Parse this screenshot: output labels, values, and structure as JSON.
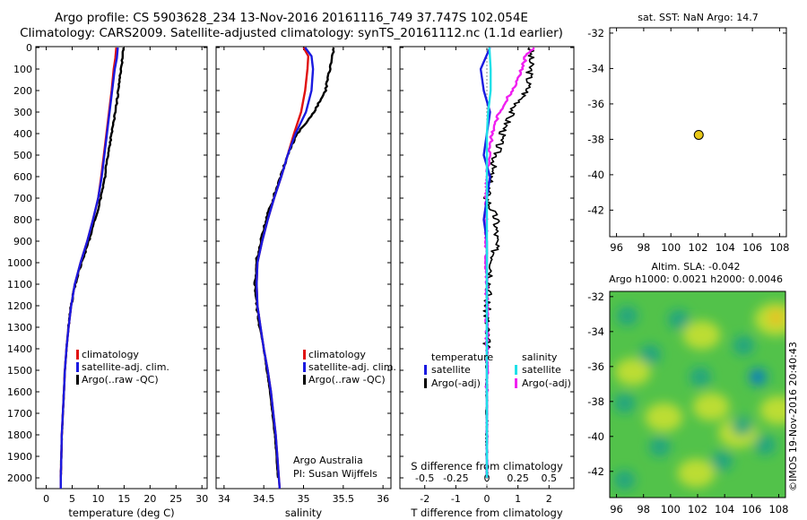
{
  "header": {
    "line1": "Argo profile: CS 5903628_234 13-Nov-2016 20161116_749 37.747S 102.054E",
    "line2": "Climatology: CARS2009. Satellite-adjusted climatology: synTS_20161112.nc (1.1d earlier)"
  },
  "credit": "©IMOS 19-Nov-2016 20:40:43",
  "colors": {
    "climatology": "#e01010",
    "satellite": "#1a1ae0",
    "argo": "#000000",
    "satellite_s": "#20e0e8",
    "argo_s": "#f020f0",
    "float_marker": "#e8c818"
  },
  "chart_data": [
    {
      "type": "line",
      "xlabel": "temperature (deg C)",
      "ylabel": "",
      "xlim": [
        -2,
        31
      ],
      "ylim": [
        2050,
        0
      ],
      "xticks": [
        0,
        5,
        10,
        15,
        20,
        25,
        30
      ],
      "yticks": [
        0,
        100,
        200,
        300,
        400,
        500,
        600,
        700,
        800,
        900,
        1000,
        1100,
        1200,
        1300,
        1400,
        1500,
        1600,
        1700,
        1800,
        1900,
        2000
      ],
      "legend": [
        "climatology",
        "satellite-adj. clim.",
        "Argo(..raw -QC)"
      ],
      "series": [
        {
          "name": "climatology",
          "points": [
            [
              13.5,
              0
            ],
            [
              13.3,
              50
            ],
            [
              13.0,
              100
            ],
            [
              12.6,
              200
            ],
            [
              12.1,
              300
            ],
            [
              11.6,
              400
            ],
            [
              11.1,
              500
            ],
            [
              10.6,
              600
            ],
            [
              10.0,
              700
            ],
            [
              9.0,
              800
            ],
            [
              7.9,
              900
            ],
            [
              6.6,
              1000
            ],
            [
              5.5,
              1100
            ],
            [
              4.8,
              1200
            ],
            [
              4.3,
              1300
            ],
            [
              3.9,
              1400
            ],
            [
              3.6,
              1500
            ],
            [
              3.4,
              1600
            ],
            [
              3.2,
              1700
            ],
            [
              3.0,
              1800
            ],
            [
              2.9,
              1900
            ],
            [
              2.8,
              2000
            ],
            [
              2.8,
              2050
            ]
          ]
        },
        {
          "name": "satellite-adj. clim.",
          "points": [
            [
              13.8,
              0
            ],
            [
              13.6,
              50
            ],
            [
              13.2,
              100
            ],
            [
              12.7,
              200
            ],
            [
              12.2,
              300
            ],
            [
              11.7,
              400
            ],
            [
              11.2,
              500
            ],
            [
              10.7,
              600
            ],
            [
              10.0,
              700
            ],
            [
              9.0,
              800
            ],
            [
              7.9,
              900
            ],
            [
              6.6,
              1000
            ],
            [
              5.5,
              1100
            ],
            [
              4.8,
              1200
            ],
            [
              4.3,
              1300
            ],
            [
              3.9,
              1400
            ],
            [
              3.6,
              1500
            ],
            [
              3.4,
              1600
            ],
            [
              3.2,
              1700
            ],
            [
              3.0,
              1800
            ],
            [
              2.9,
              1900
            ],
            [
              2.8,
              2000
            ],
            [
              2.8,
              2050
            ]
          ]
        },
        {
          "name": "Argo(..raw -QC)",
          "points": [
            [
              14.9,
              0
            ],
            [
              14.7,
              50
            ],
            [
              14.4,
              100
            ],
            [
              13.9,
              200
            ],
            [
              13.3,
              300
            ],
            [
              12.6,
              400
            ],
            [
              11.9,
              500
            ],
            [
              11.3,
              600
            ],
            [
              10.5,
              700
            ],
            [
              9.4,
              800
            ],
            [
              8.2,
              900
            ],
            [
              6.8,
              1000
            ],
            [
              5.6,
              1100
            ],
            [
              4.8,
              1200
            ],
            [
              4.3,
              1300
            ],
            [
              3.9,
              1400
            ],
            [
              3.6,
              1500
            ],
            [
              3.4,
              1600
            ],
            [
              3.2,
              1700
            ],
            [
              3.0,
              1800
            ],
            [
              2.9,
              1900
            ],
            [
              2.8,
              2000
            ]
          ]
        }
      ]
    },
    {
      "type": "line",
      "xlabel": "salinity",
      "xlim": [
        33.9,
        36.1
      ],
      "ylim": [
        2050,
        0
      ],
      "xticks": [
        34,
        34.5,
        35,
        35.5,
        36
      ],
      "legend": [
        "climatology",
        "satellite-adj. clim.",
        "Argo(..raw -QC)"
      ],
      "annotation": [
        "Argo Australia",
        "PI: Susan Wijffels"
      ],
      "series": [
        {
          "name": "climatology",
          "points": [
            [
              35.0,
              0
            ],
            [
              35.06,
              40
            ],
            [
              35.05,
              100
            ],
            [
              35.02,
              200
            ],
            [
              34.97,
              300
            ],
            [
              34.88,
              400
            ],
            [
              34.8,
              500
            ],
            [
              34.72,
              600
            ],
            [
              34.63,
              700
            ],
            [
              34.55,
              800
            ],
            [
              34.48,
              900
            ],
            [
              34.42,
              1000
            ],
            [
              34.41,
              1100
            ],
            [
              34.42,
              1200
            ],
            [
              34.46,
              1300
            ],
            [
              34.5,
              1400
            ],
            [
              34.55,
              1500
            ],
            [
              34.59,
              1600
            ],
            [
              34.62,
              1700
            ],
            [
              34.65,
              1800
            ],
            [
              34.67,
              1900
            ],
            [
              34.69,
              2000
            ],
            [
              34.7,
              2050
            ]
          ]
        },
        {
          "name": "satellite-adj. clim.",
          "points": [
            [
              35.02,
              0
            ],
            [
              35.1,
              40
            ],
            [
              35.12,
              100
            ],
            [
              35.1,
              200
            ],
            [
              35.03,
              300
            ],
            [
              34.9,
              400
            ],
            [
              34.8,
              500
            ],
            [
              34.72,
              600
            ],
            [
              34.63,
              700
            ],
            [
              34.55,
              800
            ],
            [
              34.48,
              900
            ],
            [
              34.42,
              1000
            ],
            [
              34.41,
              1100
            ],
            [
              34.42,
              1200
            ],
            [
              34.46,
              1300
            ],
            [
              34.5,
              1400
            ],
            [
              34.55,
              1500
            ],
            [
              34.59,
              1600
            ],
            [
              34.62,
              1700
            ],
            [
              34.65,
              1800
            ],
            [
              34.67,
              1900
            ],
            [
              34.69,
              2000
            ],
            [
              34.7,
              2050
            ]
          ]
        },
        {
          "name": "Argo(..raw -QC)",
          "points": [
            [
              35.38,
              0
            ],
            [
              35.36,
              40
            ],
            [
              35.33,
              100
            ],
            [
              35.28,
              200
            ],
            [
              35.13,
              300
            ],
            [
              34.92,
              400
            ],
            [
              34.8,
              500
            ],
            [
              34.71,
              600
            ],
            [
              34.62,
              700
            ],
            [
              34.53,
              800
            ],
            [
              34.46,
              900
            ],
            [
              34.4,
              1000
            ],
            [
              34.39,
              1100
            ],
            [
              34.41,
              1200
            ],
            [
              34.45,
              1300
            ],
            [
              34.5,
              1400
            ],
            [
              34.54,
              1500
            ],
            [
              34.58,
              1600
            ],
            [
              34.61,
              1700
            ],
            [
              34.64,
              1800
            ],
            [
              34.66,
              1900
            ],
            [
              34.68,
              2000
            ]
          ]
        }
      ]
    },
    {
      "type": "line",
      "xlabel": "T difference from climatology",
      "xlabel_top": "S difference from climatology",
      "xlim": [
        -2.8,
        2.8
      ],
      "ylim": [
        2050,
        0
      ],
      "xticks": [
        -2,
        -1,
        0,
        1,
        2
      ],
      "xticks_top": [
        "-0.5",
        "-0.25",
        "0",
        "0.25",
        "0.5"
      ],
      "legend_titles": [
        "temperature",
        "salinity"
      ],
      "legend": [
        "satellite",
        "Argo(-adj)",
        "satellite",
        "Argo(-adj)"
      ],
      "series": [
        {
          "name": "temperature satellite",
          "points": [
            [
              0.1,
              0
            ],
            [
              -0.2,
              100
            ],
            [
              -0.1,
              200
            ],
            [
              0.1,
              300
            ],
            [
              0.0,
              400
            ],
            [
              -0.1,
              500
            ],
            [
              0.1,
              600
            ],
            [
              0.0,
              700
            ],
            [
              -0.1,
              800
            ],
            [
              0.0,
              900
            ],
            [
              0.0,
              1000
            ],
            [
              0.0,
              1100
            ],
            [
              0.0,
              1200
            ],
            [
              0.0,
              1400
            ],
            [
              0.0,
              1600
            ],
            [
              0.0,
              1800
            ],
            [
              0.0,
              2000
            ]
          ]
        },
        {
          "name": "temperature Argo(-adj)",
          "points": [
            [
              1.4,
              0
            ],
            [
              1.4,
              100
            ],
            [
              1.3,
              200
            ],
            [
              0.8,
              300
            ],
            [
              0.5,
              400
            ],
            [
              0.3,
              500
            ],
            [
              0.1,
              600
            ],
            [
              0.0,
              700
            ],
            [
              0.3,
              800
            ],
            [
              0.3,
              900
            ],
            [
              0.2,
              1000
            ],
            [
              0.1,
              1100
            ],
            [
              0.0,
              1200
            ],
            [
              0.0,
              1400
            ],
            [
              0.0,
              1600
            ],
            [
              0.0,
              1800
            ],
            [
              0.0,
              2000
            ]
          ]
        },
        {
          "name": "salinity satellite",
          "points": [
            [
              0.02,
              0
            ],
            [
              0.03,
              100
            ],
            [
              0.03,
              200
            ],
            [
              0.01,
              300
            ],
            [
              0.0,
              400
            ],
            [
              0.0,
              500
            ],
            [
              0.0,
              700
            ],
            [
              0.0,
              1000
            ],
            [
              0.0,
              1500
            ],
            [
              0.0,
              2000
            ]
          ]
        },
        {
          "name": "salinity Argo(-adj)",
          "points": [
            [
              0.38,
              0
            ],
            [
              0.32,
              30
            ],
            [
              0.28,
              100
            ],
            [
              0.25,
              150
            ],
            [
              0.2,
              200
            ],
            [
              0.1,
              300
            ],
            [
              0.04,
              400
            ],
            [
              0.0,
              600
            ],
            [
              -0.01,
              900
            ],
            [
              0.0,
              1200
            ],
            [
              0.0,
              1600
            ],
            [
              0.0,
              2000
            ]
          ]
        }
      ]
    },
    {
      "type": "scatter",
      "title": "sat. SST: NaN  Argo: 14.7",
      "xlim": [
        95.5,
        108.5
      ],
      "ylim": [
        -43.5,
        -31.7
      ],
      "xticks": [
        96,
        98,
        100,
        102,
        104,
        106,
        108
      ],
      "yticks": [
        -32,
        -34,
        -36,
        -38,
        -40,
        -42
      ],
      "points": [
        [
          102.05,
          -37.75
        ]
      ]
    },
    {
      "type": "heatmap",
      "title_line1": "Altim. SLA: -0.042",
      "title_line2": "Argo h1000: 0.0021  h2000: 0.0046",
      "xlim": [
        95.5,
        108.5
      ],
      "ylim": [
        -43.5,
        -31.7
      ],
      "xticks": [
        96,
        98,
        100,
        102,
        104,
        106,
        108
      ],
      "yticks": [
        -32,
        -34,
        -36,
        -38,
        -40,
        -42
      ],
      "blobs_low": [
        [
          96.8,
          -33.1,
          0.55
        ],
        [
          100.6,
          -33.3,
          0.5
        ],
        [
          98.5,
          -35.3,
          0.5
        ],
        [
          105.4,
          -34.8,
          0.55
        ],
        [
          102.2,
          -36.6,
          0.5
        ],
        [
          106.5,
          -36.6,
          0.5
        ],
        [
          96.6,
          -38.1,
          0.5
        ],
        [
          99.2,
          -40.6,
          0.5
        ],
        [
          103.8,
          -41.4,
          0.55
        ],
        [
          107.0,
          -40.5,
          0.5
        ],
        [
          96.6,
          -42.5,
          0.5
        ],
        [
          105.3,
          -39.4,
          0.45
        ]
      ],
      "blobs_high": [
        [
          107.8,
          -33.3,
          0.8
        ],
        [
          102.3,
          -34.2,
          0.5
        ],
        [
          99.5,
          -38.9,
          0.5
        ],
        [
          105.0,
          -39.8,
          0.6
        ],
        [
          101.9,
          -42.1,
          0.5
        ],
        [
          97.2,
          -36.3,
          0.4
        ],
        [
          108.0,
          -38.5,
          0.5
        ],
        [
          103.0,
          -38.3,
          0.45
        ]
      ]
    }
  ]
}
